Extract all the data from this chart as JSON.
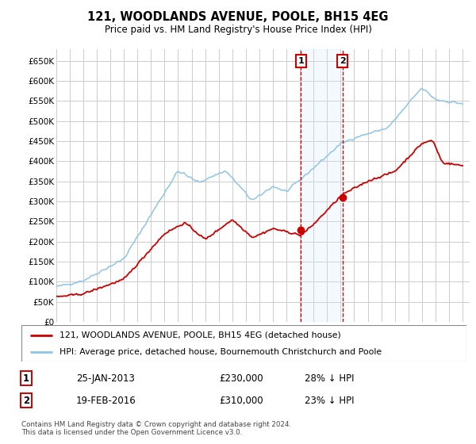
{
  "title": "121, WOODLANDS AVENUE, POOLE, BH15 4EG",
  "subtitle": "Price paid vs. HM Land Registry's House Price Index (HPI)",
  "ylabel_ticks": [
    "£0",
    "£50K",
    "£100K",
    "£150K",
    "£200K",
    "£250K",
    "£300K",
    "£350K",
    "£400K",
    "£450K",
    "£500K",
    "£550K",
    "£600K",
    "£650K"
  ],
  "ylim": [
    0,
    680000
  ],
  "xlim_start": 1995.0,
  "xlim_end": 2025.5,
  "hpi_color": "#8ec4e8",
  "price_color": "#cc0000",
  "marker1_date": 2013.07,
  "marker1_price": 230000,
  "marker2_date": 2016.13,
  "marker2_price": 310000,
  "legend_line1": "121, WOODLANDS AVENUE, POOLE, BH15 4EG (detached house)",
  "legend_line2": "HPI: Average price, detached house, Bournemouth Christchurch and Poole",
  "table_row1_num": "1",
  "table_row1_date": "25-JAN-2013",
  "table_row1_price": "£230,000",
  "table_row1_hpi": "28% ↓ HPI",
  "table_row2_num": "2",
  "table_row2_date": "19-FEB-2016",
  "table_row2_price": "£310,000",
  "table_row2_hpi": "23% ↓ HPI",
  "footer": "Contains HM Land Registry data © Crown copyright and database right 2024.\nThis data is licensed under the Open Government Licence v3.0.",
  "bg_color": "#ffffff",
  "plot_bg": "#ffffff",
  "grid_color": "#cccccc",
  "span_color": "#d0e8f8"
}
